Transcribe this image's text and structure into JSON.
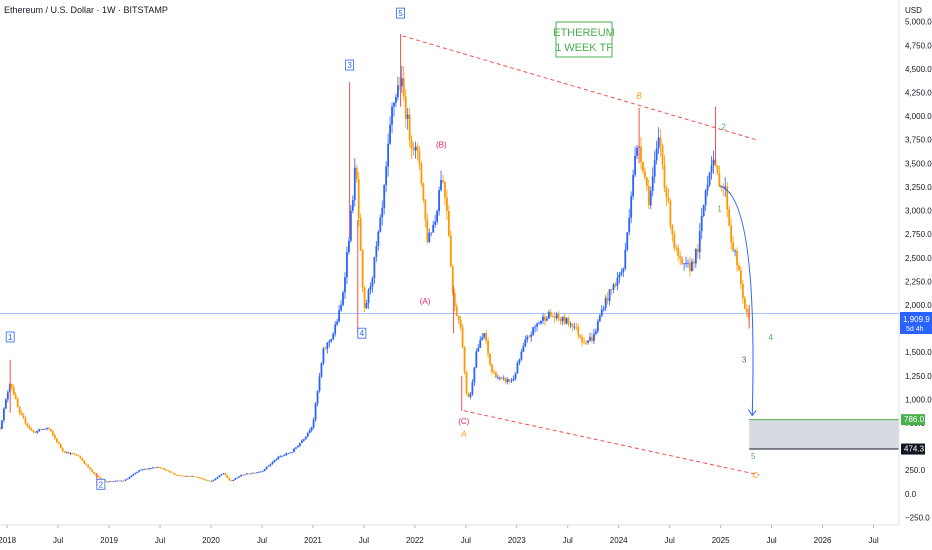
{
  "header": {
    "title": "Ethereum / U.S. Dollar · 1W · BITSTAMP",
    "currency": "USD"
  },
  "annotation_box": {
    "line1": "ETHEREUM",
    "line2": "1 WEEK TF"
  },
  "price_badge": {
    "price": "1,909.9",
    "countdown": "5d 4h"
  },
  "zone_labels": {
    "upper": "786.0",
    "lower": "474.3"
  },
  "chart_data": {
    "type": "candlestick",
    "y_axis": {
      "ylim": [
        -330,
        5230
      ],
      "ticks": [
        -250,
        0,
        250,
        500,
        750,
        1000,
        1250,
        1500,
        1750,
        2000,
        2250,
        2500,
        2750,
        3000,
        3250,
        3500,
        3750,
        4000,
        4250,
        4500,
        4750,
        5000
      ],
      "tick_labels": [
        "−250.0",
        "0.0",
        "250.0",
        "500.0",
        "750.0",
        "1,000.0",
        "1,250.0",
        "1,500.0",
        "1,750.0",
        "2,000.0",
        "2,250.0",
        "2,500.0",
        "2,750.0",
        "3,000.0",
        "3,250.0",
        "3,500.0",
        "3,750.0",
        "4,000.0",
        "4,250.0",
        "4,500.0",
        "4,750.0",
        "5,000.0"
      ]
    },
    "x_axis": {
      "range": [
        2017.93,
        2026.75
      ],
      "ticks": [
        2018.0,
        2018.5,
        2019.0,
        2019.5,
        2020.0,
        2020.5,
        2021.0,
        2021.5,
        2022.0,
        2022.5,
        2023.0,
        2023.5,
        2024.0,
        2024.5,
        2025.0,
        2025.5,
        2026.0,
        2026.5
      ],
      "tick_labels": [
        "2018",
        "Jul",
        "2019",
        "Jul",
        "2020",
        "Jul",
        "2021",
        "Jul",
        "2022",
        "Jul",
        "2023",
        "Jul",
        "2024",
        "Jul",
        "2025",
        "Jul",
        "2026",
        "Jul"
      ]
    },
    "price_path": {
      "t": [
        2017.93,
        2018.03,
        2018.12,
        2018.25,
        2018.4,
        2018.55,
        2018.7,
        2018.85,
        2018.96,
        2019.15,
        2019.3,
        2019.48,
        2019.65,
        2019.85,
        2020.0,
        2020.12,
        2020.19,
        2020.3,
        2020.5,
        2020.65,
        2020.8,
        2020.92,
        2021.0,
        2021.1,
        2021.2,
        2021.28,
        2021.36,
        2021.42,
        2021.5,
        2021.58,
        2021.68,
        2021.78,
        2021.86,
        2021.95,
        2022.05,
        2022.12,
        2022.2,
        2022.26,
        2022.32,
        2022.38,
        2022.45,
        2022.5,
        2022.54,
        2022.6,
        2022.68,
        2022.75,
        2022.85,
        2022.96,
        2023.08,
        2023.2,
        2023.3,
        2023.42,
        2023.55,
        2023.65,
        2023.75,
        2023.85,
        2023.95,
        2024.05,
        2024.15,
        2024.2,
        2024.3,
        2024.4,
        2024.45,
        2024.55,
        2024.62,
        2024.7,
        2024.78,
        2024.85,
        2024.92,
        2024.95,
        2025.0,
        2025.05,
        2025.1,
        2025.15,
        2025.2,
        2025.25,
        2025.28
      ],
      "price": [
        700,
        1200,
        850,
        650,
        700,
        450,
        400,
        210,
        130,
        140,
        250,
        290,
        200,
        180,
        130,
        220,
        130,
        200,
        240,
        380,
        450,
        600,
        740,
        1500,
        1700,
        2000,
        2800,
        3500,
        1900,
        2300,
        3000,
        4100,
        4400,
        3800,
        3500,
        2700,
        2900,
        3400,
        3000,
        2000,
        1800,
        1100,
        1000,
        1500,
        1700,
        1300,
        1200,
        1200,
        1600,
        1800,
        1900,
        1850,
        1800,
        1620,
        1650,
        2000,
        2200,
        2400,
        3500,
        3700,
        3100,
        3800,
        3300,
        2600,
        2400,
        2400,
        2600,
        3200,
        3600,
        3400,
        3300,
        3200,
        2700,
        2500,
        2200,
        1900,
        1850
      ]
    },
    "wicks": [
      {
        "t": 2018.03,
        "high": 1420,
        "low": 860
      },
      {
        "t": 2018.88,
        "high": 220,
        "low": 83
      },
      {
        "t": 2021.36,
        "high": 4360,
        "low": 2700
      },
      {
        "t": 2021.44,
        "high": 2900,
        "low": 1700
      },
      {
        "t": 2021.86,
        "high": 4870,
        "low": 4100
      },
      {
        "t": 2022.38,
        "high": 2200,
        "low": 1700
      },
      {
        "t": 2022.46,
        "high": 1250,
        "low": 880
      },
      {
        "t": 2024.2,
        "high": 4090,
        "low": 3500
      },
      {
        "t": 2024.95,
        "high": 4100,
        "low": 3500
      },
      {
        "t": 2025.28,
        "high": 2000,
        "low": 1750
      }
    ],
    "current_price": 1909.9,
    "trend_lines": [
      {
        "from": [
          2021.88,
          4850
        ],
        "to": [
          2025.35,
          3750
        ]
      },
      {
        "from": [
          2022.48,
          880
        ],
        "to": [
          2025.38,
          200
        ]
      }
    ],
    "projection_arc": {
      "from": [
        2024.99,
        3260
      ],
      "to": [
        2025.31,
        830
      ]
    },
    "target_zone": {
      "t_start": 2025.28,
      "upper": 786.0,
      "lower": 474.3
    },
    "wave_labels": [
      {
        "text": "1",
        "t": 2018.03,
        "price": 1640,
        "style": "box",
        "color": "#2962ff"
      },
      {
        "text": "2",
        "t": 2018.92,
        "price": 80,
        "style": "box",
        "color": "#2962ff"
      },
      {
        "text": "3",
        "t": 2021.36,
        "price": 4520,
        "style": "box",
        "color": "#2962ff"
      },
      {
        "text": "4",
        "t": 2021.48,
        "price": 1680,
        "style": "box",
        "color": "#2962ff"
      },
      {
        "text": "5",
        "t": 2021.86,
        "price": 5070,
        "style": "box",
        "color": "#2962ff"
      },
      {
        "text": "(B)",
        "t": 2022.26,
        "price": 3680,
        "style": "text",
        "color": "#e91e63"
      },
      {
        "text": "(A)",
        "t": 2022.1,
        "price": 2020,
        "style": "text",
        "color": "#e91e63"
      },
      {
        "text": "(C)",
        "t": 2022.48,
        "price": 750,
        "style": "text",
        "color": "#e91e63"
      },
      {
        "text": "A",
        "t": 2022.48,
        "price": 620,
        "style": "italic",
        "color": "#ff9800"
      },
      {
        "text": "B",
        "t": 2024.2,
        "price": 4200,
        "style": "italic",
        "color": "#ff9800"
      },
      {
        "text": "C",
        "t": 2025.34,
        "price": 180,
        "style": "italic",
        "color": "#ff9800"
      },
      {
        "text": "1",
        "t": 2024.99,
        "price": 3000,
        "style": "text",
        "color": "#4caf50"
      },
      {
        "text": "2",
        "t": 2025.03,
        "price": 3870,
        "style": "text",
        "color": "#4caf50"
      },
      {
        "text": "3",
        "t": 2025.23,
        "price": 1400,
        "style": "text",
        "color": "#795548"
      },
      {
        "text": "4",
        "t": 2025.49,
        "price": 1640,
        "style": "text",
        "color": "#4caf50"
      },
      {
        "text": "5",
        "t": 2025.32,
        "price": 380,
        "style": "text",
        "color": "#4caf50"
      }
    ],
    "colors": {
      "up": "#2962ff",
      "down": "#ff9800",
      "pink": "#e91e63",
      "green": "#4caf50",
      "trend": "#ef5350"
    },
    "grid": false
  }
}
